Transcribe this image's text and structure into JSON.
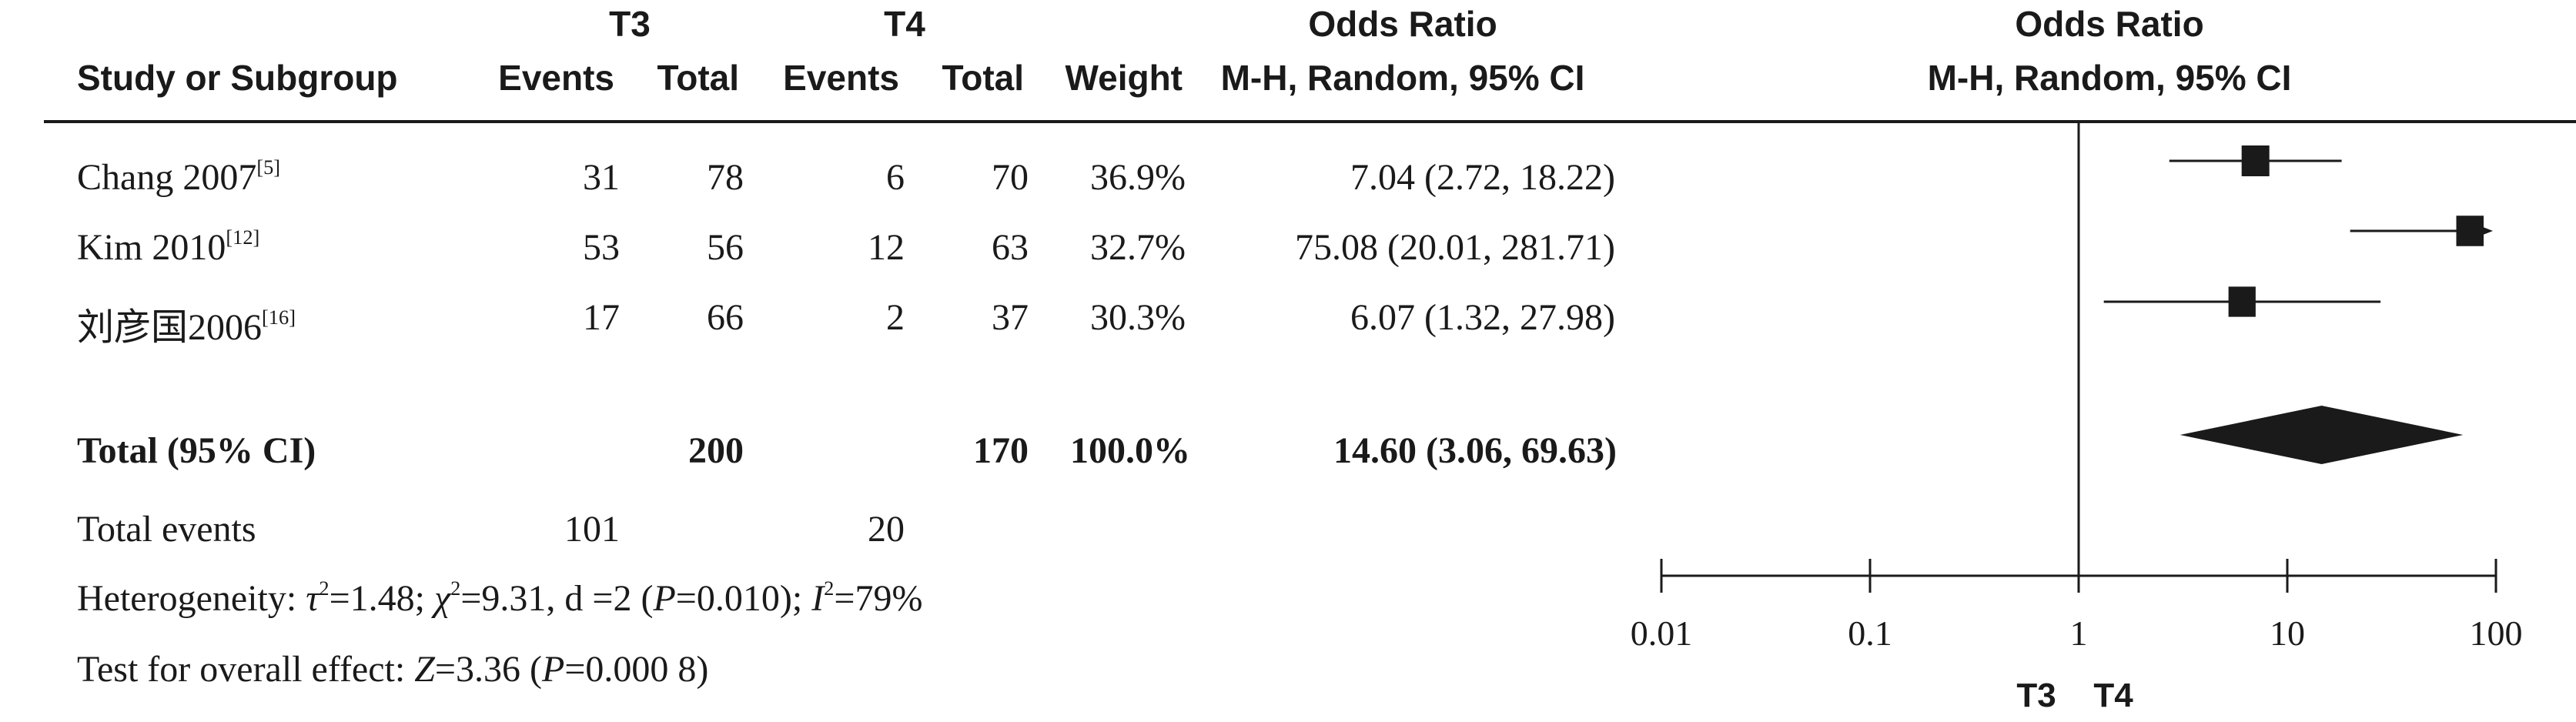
{
  "header": {
    "group1": "T3",
    "group2": "T4",
    "study_col": "Study or Subgroup",
    "events": "Events",
    "total": "Total",
    "weight": "Weight",
    "or_title": "Odds Ratio",
    "or_method": "M-H, Random, 95% CI",
    "plot_title": "Odds Ratio",
    "plot_method": "M-H, Random, 95% CI"
  },
  "studies": [
    {
      "name": "Chang 2007",
      "ref": "[5]",
      "t3_events": "31",
      "t3_total": "78",
      "t4_events": "6",
      "t4_total": "70",
      "weight": "36.9%",
      "ci_text": "7.04 (2.72, 18.22)"
    },
    {
      "name": "Kim 2010",
      "ref": "[12]",
      "t3_events": "53",
      "t3_total": "56",
      "t4_events": "12",
      "t4_total": "63",
      "weight": "32.7%",
      "ci_text": "75.08 (20.01, 281.71)"
    },
    {
      "name": "刘彦国2006",
      "ref": "[16]",
      "t3_events": "17",
      "t3_total": "66",
      "t4_events": "2",
      "t4_total": "37",
      "weight": "30.3%",
      "ci_text": "6.07 (1.32, 27.98)"
    }
  ],
  "total": {
    "label": "Total (95% CI)",
    "t3_total": "200",
    "t4_total": "170",
    "weight": "100.0%",
    "ci_text": "14.60 (3.06, 69.63)"
  },
  "total_events": {
    "label": "Total events",
    "t3": "101",
    "t4": "20"
  },
  "heterogeneity": {
    "prefix": "Heterogeneity: ",
    "tau": "τ",
    "tau_eq": "=1.48; ",
    "chi": "χ",
    "chi_eq": "=9.31, d =2 (",
    "p": "P",
    "p_eq": "=0.010); ",
    "i": "I",
    "i_eq": "=79%",
    "sq": "2"
  },
  "overall": {
    "prefix": "Test for overall effect: ",
    "z": "Z",
    "z_eq": "=3.36 (",
    "p": "P",
    "p_eq": "=0.000 8)"
  },
  "chart_data": {
    "type": "forest",
    "x_scale": "log",
    "xlim": [
      0.01,
      100
    ],
    "ticks": [
      0.01,
      0.1,
      1,
      10,
      100
    ],
    "tick_labels": [
      "0.01",
      "0.1",
      "1",
      "10",
      "100"
    ],
    "favours_left": "T3",
    "favours_right": "T4",
    "studies": [
      {
        "name": "Chang 2007",
        "or": 7.04,
        "lower": 2.72,
        "upper": 18.22,
        "weight": 36.9
      },
      {
        "name": "Kim 2010",
        "or": 75.08,
        "lower": 20.01,
        "upper": 281.71,
        "weight": 32.7
      },
      {
        "name": "刘彦国2006",
        "or": 6.07,
        "lower": 1.32,
        "upper": 27.98,
        "weight": 30.3
      }
    ],
    "pooled": {
      "or": 14.6,
      "lower": 3.06,
      "upper": 69.63
    },
    "colors": {
      "ink": "#1a1a1a"
    }
  }
}
